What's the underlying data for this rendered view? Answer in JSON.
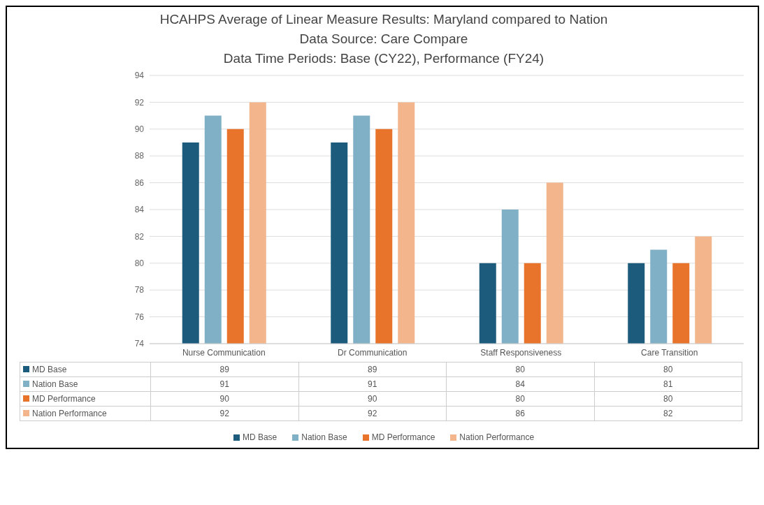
{
  "chart_data": {
    "type": "bar",
    "title": "HCAHPS Average of Linear Measure Results: Maryland compared to Nation",
    "subtitle": "Data Source: Care Compare",
    "annotations": [
      "Data Time Periods: Base (CY22), Performance (FY24)"
    ],
    "categories": [
      "Nurse Communication",
      "Dr Communication",
      "Staff Responsiveness",
      "Care Transition"
    ],
    "series": [
      {
        "name": "MD Base",
        "color": "#1c5b7c",
        "values": [
          89,
          89,
          80,
          80
        ]
      },
      {
        "name": "Nation Base",
        "color": "#7fb0c6",
        "values": [
          91,
          91,
          84,
          81
        ]
      },
      {
        "name": "MD Performance",
        "color": "#e8742c",
        "values": [
          90,
          90,
          80,
          80
        ]
      },
      {
        "name": "Nation Performance",
        "color": "#f2b58c",
        "values": [
          92,
          92,
          86,
          82
        ]
      }
    ],
    "ylim": [
      74,
      94
    ],
    "yticks": [
      74,
      76,
      78,
      80,
      82,
      84,
      86,
      88,
      90,
      92,
      94
    ],
    "grid": "y",
    "legend": "bottom",
    "data_labels": true
  }
}
